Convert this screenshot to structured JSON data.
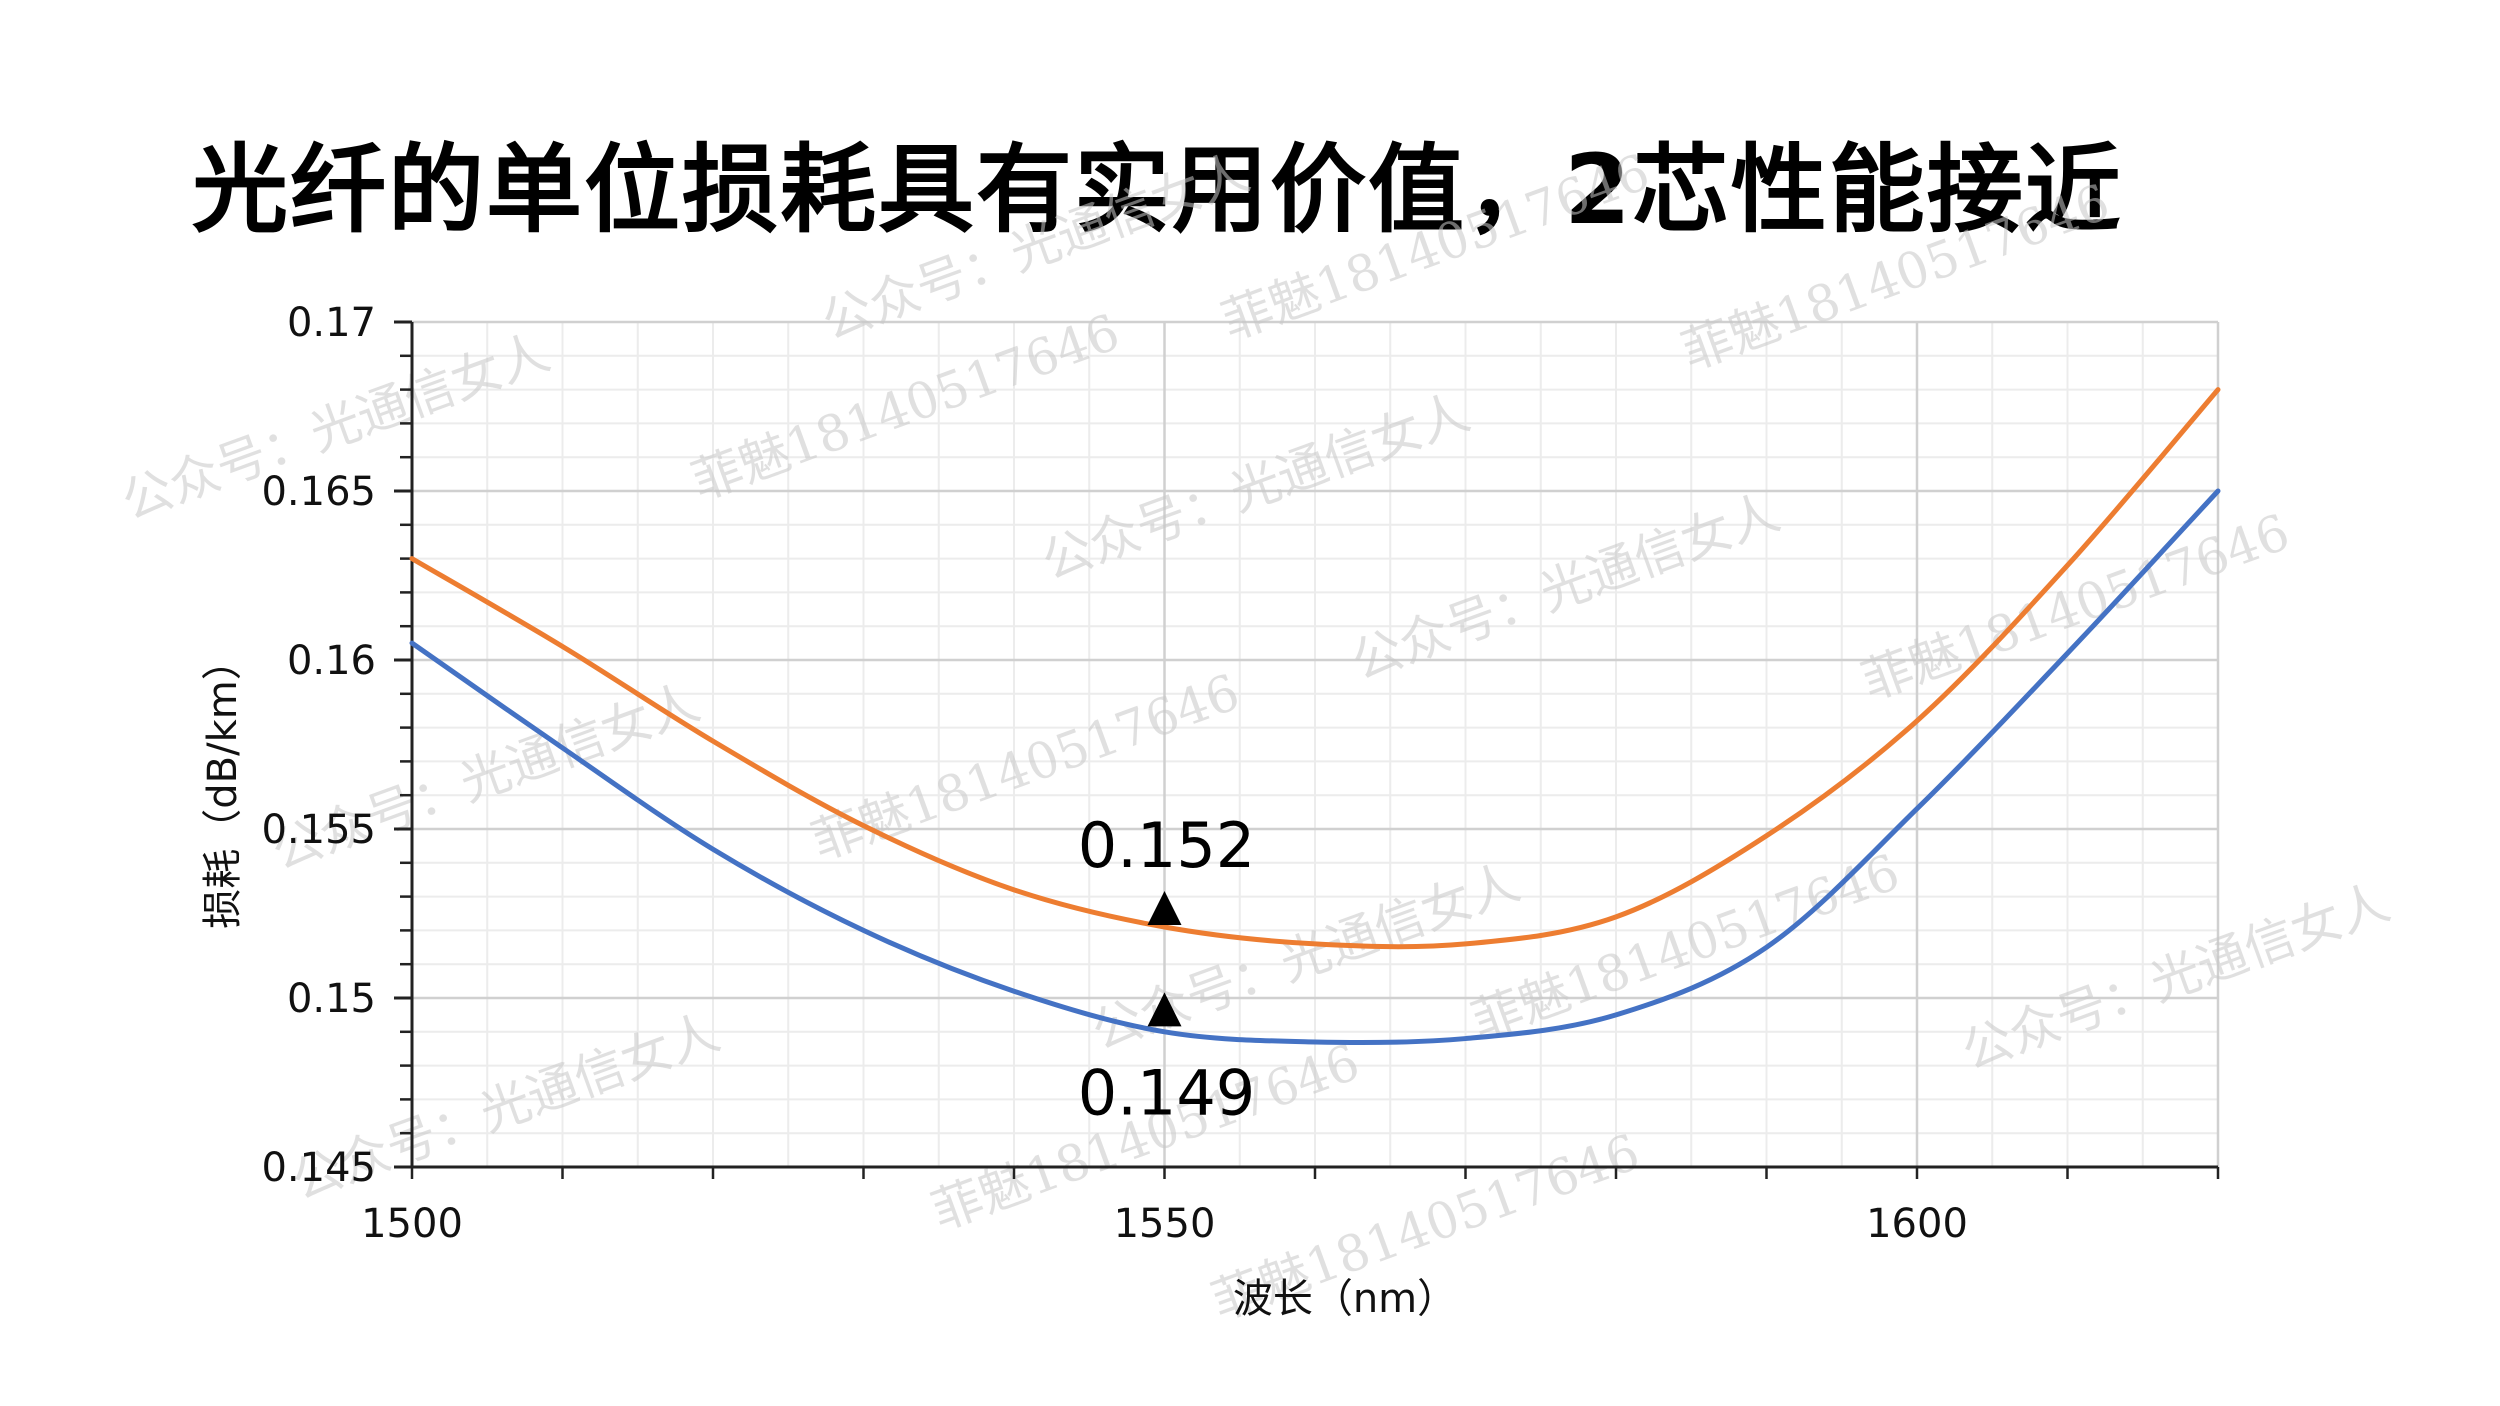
{
  "page": {
    "title": "光纤的单位损耗具有实用价值，2芯性能接近"
  },
  "watermarks": [
    "公众号：光通信女人",
    "菲魅18140517646"
  ],
  "chart_data": {
    "type": "line",
    "xlabel": "波长（nm）",
    "ylabel": "损耗（dB/km）",
    "xlim": [
      1500,
      1620
    ],
    "ylim": [
      0.145,
      0.17
    ],
    "x_ticks": [
      "1500",
      "1550",
      "1600"
    ],
    "y_ticks": [
      "0.145",
      "0.15",
      "0.155",
      "0.16",
      "0.165",
      "0.17"
    ],
    "grid": true,
    "legend": "none",
    "series": [
      {
        "color": "#ED7D31",
        "x": [
          1500,
          1510,
          1520,
          1530,
          1540,
          1550,
          1560,
          1570,
          1580,
          1590,
          1600,
          1610,
          1620
        ],
        "y": [
          0.163,
          0.1604,
          0.1576,
          0.1551,
          0.1532,
          0.1521,
          0.1516,
          0.1516,
          0.1524,
          0.1548,
          0.1582,
          0.1628,
          0.168
        ]
      },
      {
        "color": "#4472C4",
        "x": [
          1500,
          1510,
          1520,
          1530,
          1540,
          1550,
          1560,
          1570,
          1580,
          1590,
          1600,
          1610,
          1620
        ],
        "y": [
          0.1605,
          0.1574,
          0.1544,
          0.152,
          0.1502,
          0.149,
          0.1487,
          0.1488,
          0.1495,
          0.1515,
          0.1556,
          0.1602,
          0.165
        ]
      }
    ],
    "annotations": [
      {
        "text": "0.152",
        "x": 1550,
        "y": 0.1521,
        "label_pos": "above"
      },
      {
        "text": "0.149",
        "x": 1550,
        "y": 0.1491,
        "label_pos": "below"
      }
    ]
  }
}
